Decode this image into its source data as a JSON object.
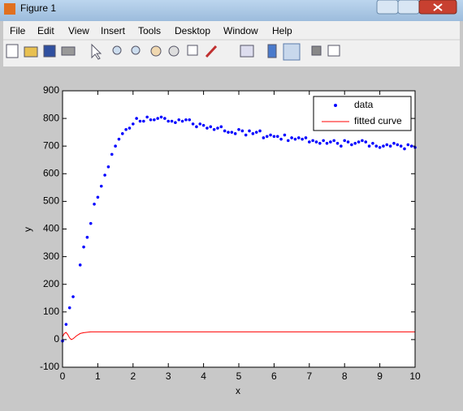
{
  "window": {
    "title": "Figure 1",
    "menu": [
      "File",
      "Edit",
      "View",
      "Insert",
      "Tools",
      "Desktop",
      "Window",
      "Help"
    ]
  },
  "chart_data": {
    "type": "scatter",
    "xlabel": "x",
    "ylabel": "y",
    "xlim": [
      0,
      10
    ],
    "xticks": [
      0,
      1,
      2,
      3,
      4,
      5,
      6,
      7,
      8,
      9,
      10
    ],
    "ylim": [
      -100,
      900
    ],
    "yticks": [
      -100,
      0,
      100,
      200,
      300,
      400,
      500,
      600,
      700,
      800,
      900
    ],
    "legend": "upper right",
    "series": [
      {
        "name": "data",
        "color": "#0000ff",
        "style": "markers",
        "x": [
          0,
          0.1,
          0.2,
          0.3,
          0.5,
          0.6,
          0.7,
          0.8,
          0.9,
          1.0,
          1.1,
          1.2,
          1.3,
          1.4,
          1.5,
          1.6,
          1.7,
          1.8,
          1.9,
          2.0,
          2.1,
          2.2,
          2.3,
          2.4,
          2.5,
          2.6,
          2.7,
          2.8,
          2.9,
          3.0,
          3.1,
          3.2,
          3.3,
          3.4,
          3.5,
          3.6,
          3.7,
          3.8,
          3.9,
          4.0,
          4.1,
          4.2,
          4.3,
          4.4,
          4.5,
          4.6,
          4.7,
          4.8,
          4.9,
          5.0,
          5.1,
          5.2,
          5.3,
          5.4,
          5.5,
          5.6,
          5.7,
          5.8,
          5.9,
          6.0,
          6.1,
          6.2,
          6.3,
          6.4,
          6.5,
          6.6,
          6.7,
          6.8,
          6.9,
          7.0,
          7.1,
          7.2,
          7.3,
          7.4,
          7.5,
          7.6,
          7.7,
          7.8,
          7.9,
          8.0,
          8.1,
          8.2,
          8.3,
          8.4,
          8.5,
          8.6,
          8.7,
          8.8,
          8.9,
          9.0,
          9.1,
          9.2,
          9.3,
          9.4,
          9.5,
          9.6,
          9.7,
          9.8,
          9.9,
          10.0
        ],
        "values": [
          -5,
          55,
          115,
          155,
          270,
          335,
          370,
          420,
          490,
          515,
          555,
          595,
          625,
          670,
          700,
          725,
          745,
          760,
          765,
          780,
          800,
          790,
          790,
          805,
          795,
          795,
          800,
          805,
          800,
          790,
          790,
          785,
          795,
          790,
          795,
          795,
          780,
          770,
          780,
          775,
          765,
          770,
          760,
          765,
          770,
          755,
          750,
          750,
          745,
          760,
          755,
          740,
          755,
          745,
          750,
          755,
          730,
          735,
          740,
          735,
          735,
          725,
          740,
          720,
          730,
          725,
          730,
          725,
          730,
          715,
          720,
          715,
          710,
          720,
          710,
          715,
          720,
          710,
          700,
          720,
          715,
          705,
          710,
          715,
          720,
          715,
          700,
          710,
          700,
          695,
          700,
          705,
          700,
          710,
          705,
          700,
          690,
          705,
          700,
          695
        ]
      },
      {
        "name": "fitted curve",
        "color": "#ff0000",
        "style": "line",
        "x": [
          0,
          0.05,
          0.1,
          0.15,
          0.2,
          0.25,
          0.3,
          0.4,
          0.5,
          0.6,
          0.8,
          1,
          2,
          4,
          6,
          8,
          10
        ],
        "values": [
          10,
          22,
          26,
          18,
          6,
          0,
          3,
          14,
          22,
          25,
          28,
          28,
          28,
          28,
          28,
          28,
          28
        ]
      }
    ]
  }
}
